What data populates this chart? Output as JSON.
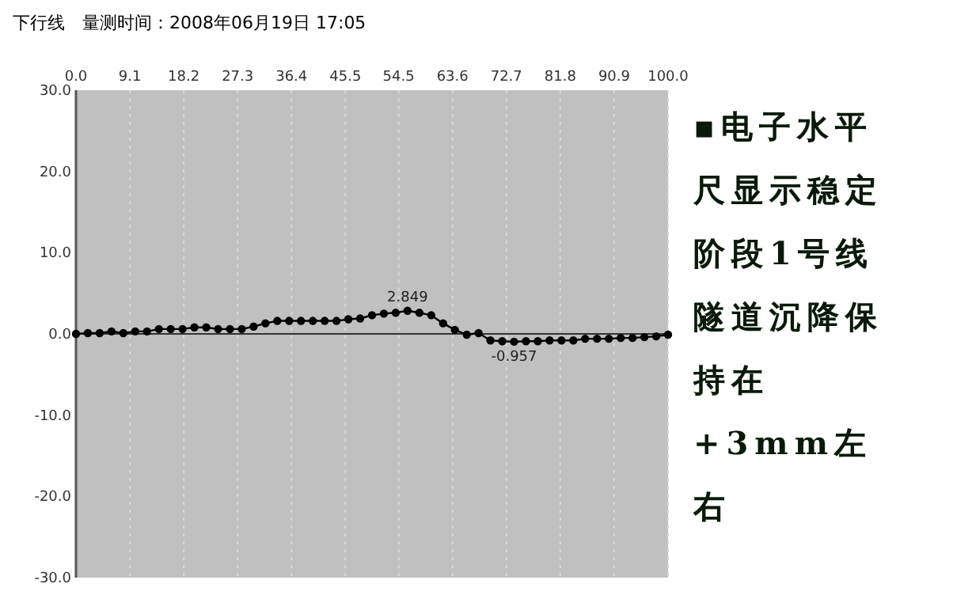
{
  "chart_data": {
    "type": "line",
    "title": "下行线　量测时间：2008年06月19日 17:05",
    "annotations": [
      "▪电子水平尺显示稳定阶段1号线隧道沉降保持在+3mm左右"
    ],
    "x": [
      0,
      2,
      4,
      6,
      8,
      10,
      12,
      14,
      16,
      18,
      20,
      22,
      24,
      26,
      28,
      30,
      32,
      34,
      36,
      38,
      40,
      42,
      44,
      46,
      48,
      50,
      52,
      54,
      56,
      58,
      60,
      62,
      64,
      66,
      68,
      70,
      72,
      74,
      76,
      78,
      80,
      82,
      84,
      86,
      88,
      90,
      92,
      94,
      96,
      98,
      100
    ],
    "series": [
      {
        "color": "#000000",
        "values": [
          0,
          0.1,
          0.1,
          0.3,
          0.1,
          0.3,
          0.3,
          0.6,
          0.6,
          0.6,
          0.8,
          0.8,
          0.6,
          0.6,
          0.6,
          0.9,
          1.3,
          1.6,
          1.6,
          1.6,
          1.6,
          1.6,
          1.6,
          1.8,
          1.9,
          2.3,
          2.5,
          2.6,
          2.849,
          2.6,
          2.3,
          1.3,
          0.5,
          -0.1,
          0.1,
          -0.8,
          -0.9,
          -0.957,
          -0.9,
          -0.9,
          -0.8,
          -0.8,
          -0.8,
          -0.6,
          -0.6,
          -0.6,
          -0.5,
          -0.5,
          -0.4,
          -0.3,
          -0.1
        ],
        "value_labels": [
          null,
          null,
          null,
          null,
          null,
          null,
          null,
          null,
          null,
          null,
          null,
          null,
          null,
          null,
          null,
          null,
          null,
          null,
          null,
          null,
          null,
          null,
          null,
          null,
          null,
          null,
          null,
          null,
          "2.849",
          null,
          null,
          null,
          null,
          null,
          null,
          null,
          null,
          "-0.957",
          null,
          null,
          null,
          null,
          null,
          null,
          null,
          null,
          null,
          null,
          null,
          null,
          null
        ]
      }
    ],
    "xlim": [
      0,
      100
    ],
    "xticks": [
      {
        "value": 0,
        "label": "0.0"
      },
      9.1,
      18.2,
      27.3,
      36.4,
      45.5,
      54.5,
      63.6,
      72.7,
      81.8,
      90.9,
      {
        "value": 100,
        "label": "100.0"
      }
    ],
    "ylim": [
      -30,
      30
    ],
    "yticks": [
      {
        "value": 30,
        "label": "30.0"
      },
      {
        "value": 20,
        "label": "20.0"
      },
      {
        "value": 10,
        "label": "10.0"
      },
      {
        "value": 0,
        "label": "0.0"
      },
      {
        "value": -10,
        "label": "-10.0"
      },
      {
        "value": -20,
        "label": "-20.0"
      },
      {
        "value": -30,
        "label": "-30.0"
      }
    ],
    "ref_lines": [
      {
        "axis": "y",
        "value": 0,
        "color": "#333333"
      }
    ],
    "grid": "x",
    "marker": "circle",
    "line_style": "solid"
  }
}
